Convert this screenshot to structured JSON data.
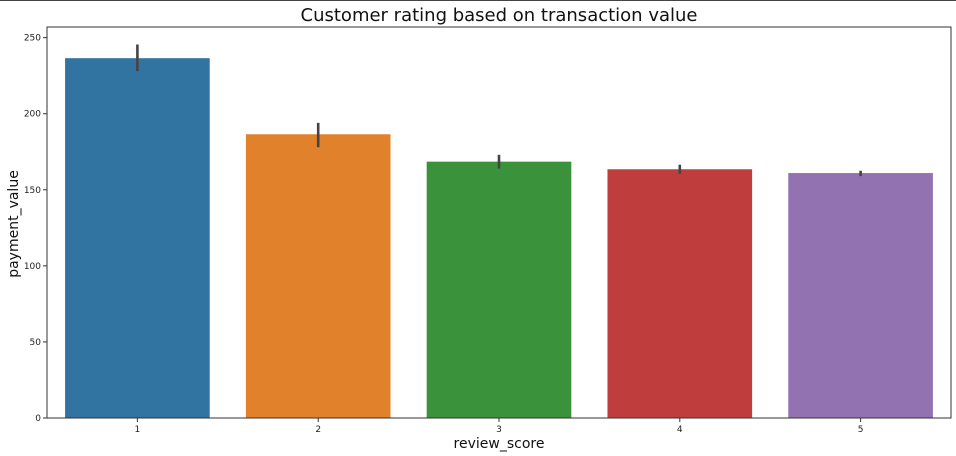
{
  "chart_data": {
    "type": "bar",
    "title": "Customer rating based on transaction value",
    "xlabel": "review_score",
    "ylabel": "payment_value",
    "categories": [
      "1",
      "2",
      "3",
      "4",
      "5"
    ],
    "values": [
      236.5,
      186.5,
      168.5,
      163.5,
      161.0
    ],
    "error_low": [
      228,
      178,
      164,
      160.5,
      159
    ],
    "error_high": [
      245.5,
      194,
      173,
      166.5,
      162.5
    ],
    "colors": [
      "#3274a1",
      "#e1812c",
      "#3a923a",
      "#c03d3e",
      "#9372b2"
    ],
    "ylim": [
      0,
      257
    ],
    "yticks": [
      0,
      50,
      100,
      150,
      200,
      250
    ],
    "grid": false,
    "legend": "none"
  }
}
